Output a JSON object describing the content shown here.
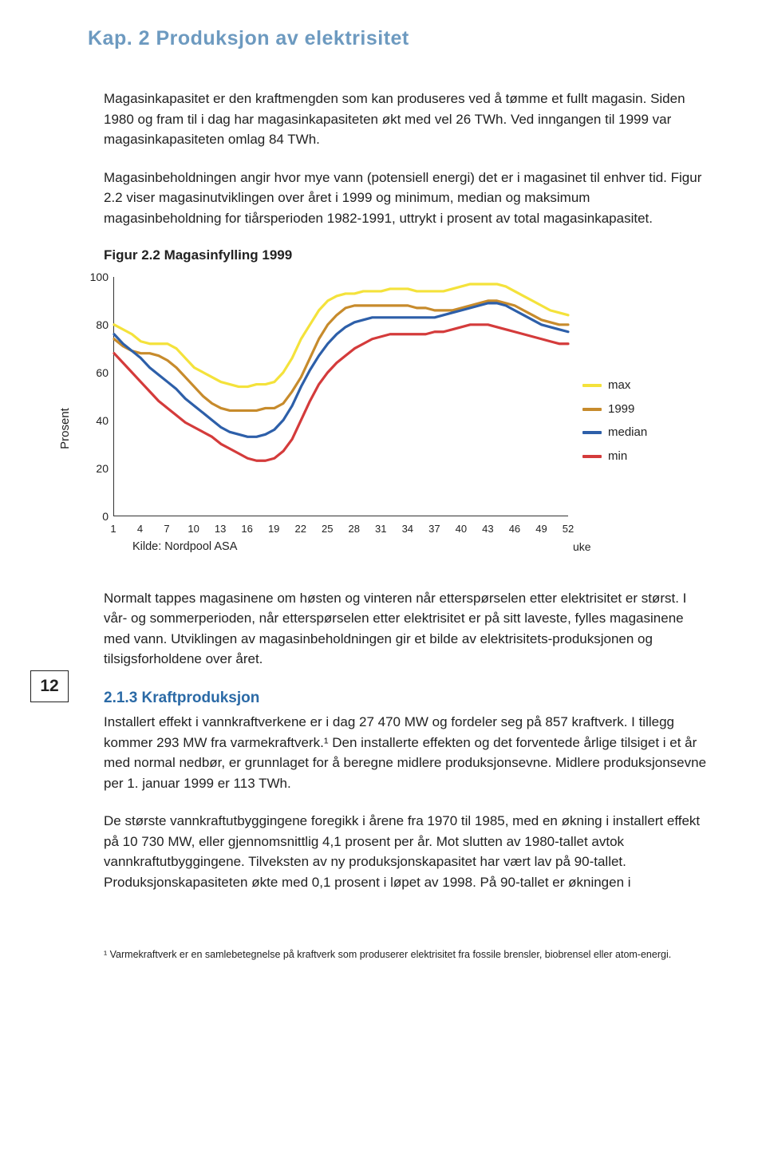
{
  "chapter_header": "Kap. 2 Produksjon av elektrisitet",
  "page_number": "12",
  "paragraphs": {
    "p1": "Magasinkapasitet er den kraftmengden som kan produseres ved å tømme et fullt magasin. Siden 1980 og fram til i dag har magasinkapasiteten økt med vel 26 TWh. Ved inngangen til 1999 var magasinkapasiteten omlag 84 TWh.",
    "p2": "Magasinbeholdningen angir hvor mye vann (potensiell energi) det er i magasinet til enhver tid. Figur 2.2 viser magasinutviklingen over året i 1999 og minimum, median og maksimum magasinbeholdning for tiårsperioden 1982-1991, uttrykt i prosent av total magasinkapasitet.",
    "p3": "Normalt tappes magasinene om høsten og vinteren når etterspørselen etter elektrisitet er størst. I vår- og sommerperioden, når etterspørselen etter elektrisitet er på sitt laveste, fylles magasinene med vann. Utviklingen av magasinbeholdningen gir et bilde av elektrisitets-produksjonen og tilsigsforholdene over året.",
    "p4": "Installert effekt i vannkraftverkene er i dag 27 470 MW og fordeler seg på 857 kraftverk. I tillegg kommer 293 MW fra varmekraftverk.¹ Den installerte effekten og det forventede årlige tilsiget i et år med normal nedbør, er grunnlaget for å beregne midlere produksjonsevne. Midlere produksjonsevne per 1. januar 1999 er 113 TWh.",
    "p5": "De største vannkraftutbyggingene foregikk i årene fra 1970 til 1985, med en økning i installert effekt på 10 730 MW, eller gjennomsnittlig 4,1 prosent per år. Mot slutten av 1980-tallet avtok vannkraftutbyggingene. Tilveksten av ny produksjonskapasitet har vært lav på 90-tallet. Produksjonskapasiteten økte med 0,1 prosent i løpet av 1998. På 90-tallet er økningen i"
  },
  "subheading": "2.1.3 Kraftproduksjon",
  "figure_title": "Figur 2.2 Magasinfylling 1999",
  "footnote": "¹ Varmekraftverk er en samlebetegnelse på kraftverk som produserer elektrisitet fra fossile brensler, biobrensel eller atom-energi.",
  "chart": {
    "type": "line",
    "ylabel": "Prosent",
    "ylim": [
      0,
      100
    ],
    "ytick_step": 20,
    "yticks": [
      0,
      20,
      40,
      60,
      80,
      100
    ],
    "xlim": [
      1,
      52
    ],
    "xticks": [
      1,
      4,
      7,
      10,
      13,
      16,
      19,
      22,
      25,
      28,
      31,
      34,
      37,
      40,
      43,
      46,
      49,
      52
    ],
    "x_axis_label": "uke",
    "source": "Kilde: Nordpool ASA",
    "line_width": 3.2,
    "background_color": "#ffffff",
    "axis_color": "#333333",
    "tick_fontsize": 13,
    "label_fontsize": 15,
    "series": [
      {
        "name": "max",
        "color": "#f4e23b",
        "data": [
          80,
          78,
          76,
          73,
          72,
          72,
          72,
          70,
          66,
          62,
          60,
          58,
          56,
          55,
          54,
          54,
          55,
          55,
          56,
          60,
          66,
          74,
          80,
          86,
          90,
          92,
          93,
          93,
          94,
          94,
          94,
          95,
          95,
          95,
          94,
          94,
          94,
          94,
          95,
          96,
          97,
          97,
          97,
          97,
          96,
          94,
          92,
          90,
          88,
          86,
          85,
          84
        ]
      },
      {
        "name": "1999",
        "color": "#c78b2c",
        "data": [
          74,
          71,
          69,
          68,
          68,
          67,
          65,
          62,
          58,
          54,
          50,
          47,
          45,
          44,
          44,
          44,
          44,
          45,
          45,
          47,
          52,
          58,
          66,
          74,
          80,
          84,
          87,
          88,
          88,
          88,
          88,
          88,
          88,
          88,
          87,
          87,
          86,
          86,
          86,
          87,
          88,
          89,
          90,
          90,
          89,
          88,
          86,
          84,
          82,
          81,
          80,
          80
        ]
      },
      {
        "name": "median",
        "color": "#2d5fa9",
        "data": [
          76,
          72,
          69,
          66,
          62,
          59,
          56,
          53,
          49,
          46,
          43,
          40,
          37,
          35,
          34,
          33,
          33,
          34,
          36,
          40,
          46,
          54,
          61,
          67,
          72,
          76,
          79,
          81,
          82,
          83,
          83,
          83,
          83,
          83,
          83,
          83,
          83,
          84,
          85,
          86,
          87,
          88,
          89,
          89,
          88,
          86,
          84,
          82,
          80,
          79,
          78,
          77
        ]
      },
      {
        "name": "min",
        "color": "#d43b3b",
        "data": [
          68,
          64,
          60,
          56,
          52,
          48,
          45,
          42,
          39,
          37,
          35,
          33,
          30,
          28,
          26,
          24,
          23,
          23,
          24,
          27,
          32,
          40,
          48,
          55,
          60,
          64,
          67,
          70,
          72,
          74,
          75,
          76,
          76,
          76,
          76,
          76,
          77,
          77,
          78,
          79,
          80,
          80,
          80,
          79,
          78,
          77,
          76,
          75,
          74,
          73,
          72,
          72
        ]
      }
    ]
  }
}
